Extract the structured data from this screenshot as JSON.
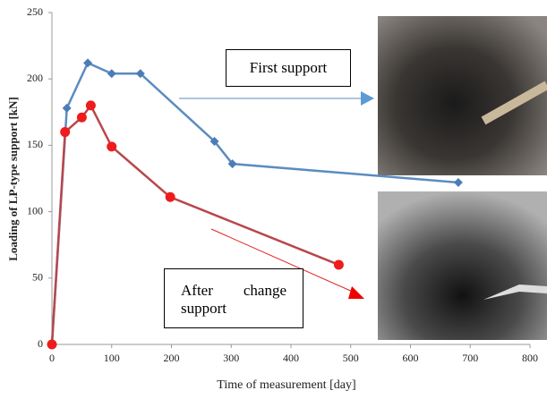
{
  "chart_data": {
    "type": "line",
    "xlabel": "Time of measurement [day]",
    "ylabel": "Loading of LP-type support [kN]",
    "xlim": [
      0,
      800
    ],
    "xticks": [
      0,
      100,
      200,
      300,
      400,
      500,
      600,
      700,
      800
    ],
    "ylim": [
      0,
      250
    ],
    "yticks": [
      0,
      50,
      100,
      150,
      200,
      250
    ],
    "series": [
      {
        "color": "#5b8bc0",
        "marker": "diamond",
        "marker_color": "#4a7db8",
        "x": [
          0,
          25,
          60,
          100,
          148,
          272,
          302,
          680
        ],
        "values": [
          0,
          178,
          212,
          204,
          204,
          153,
          136,
          122
        ]
      },
      {
        "color": "#b8474a",
        "marker": "circle",
        "marker_color": "#ee1c1c",
        "x": [
          0,
          22,
          50,
          65,
          100,
          198,
          480
        ],
        "values": [
          0,
          160,
          171,
          180,
          149,
          111,
          60
        ]
      }
    ],
    "annotations": [
      "First support",
      "After change support"
    ]
  }
}
